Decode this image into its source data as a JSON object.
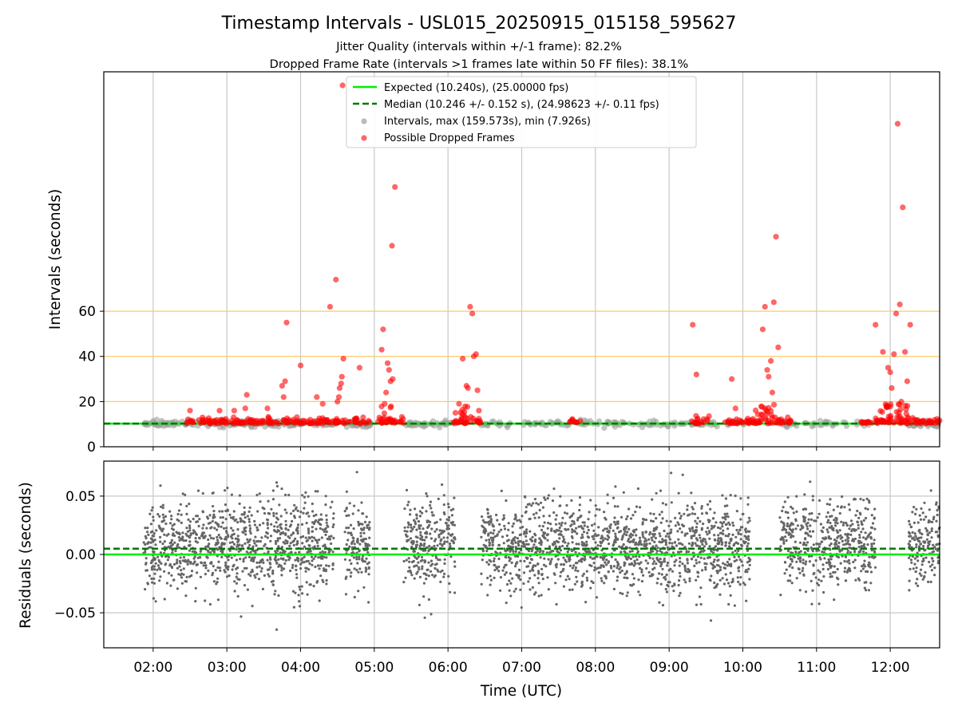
{
  "chart_data": {
    "type": "scatter",
    "title": "Timestamp Intervals - USL015_20250915_015158_595627",
    "subtitle_lines": [
      "Jitter Quality (intervals within +/-1 frame): 82.2%",
      "Dropped Frame Rate (intervals >1 frames late within 50 FF files): 38.1%"
    ],
    "xlabel": "Time (UTC)",
    "x_ticks": [
      "02:00",
      "03:00",
      "04:00",
      "05:00",
      "06:00",
      "07:00",
      "08:00",
      "09:00",
      "10:00",
      "11:00",
      "12:00"
    ],
    "xlim_hours": [
      1.33,
      12.67
    ],
    "colors": {
      "expected": "#00ee00",
      "median": "#007700",
      "intervals": "#9e9e9e",
      "dropped": "#ff0000",
      "residuals": "#666666",
      "threshold": "#ffc966",
      "grid": "#c8c8c8"
    },
    "top_panel": {
      "ylabel": "Intervals (seconds)",
      "yticks": [
        "0",
        "20",
        "40",
        "60"
      ],
      "ylim": [
        0,
        166
      ],
      "threshold_lines": [
        20,
        40,
        60
      ],
      "expected_value": 10.24,
      "median_value": 10.246,
      "legend": {
        "expected": "Expected (10.240s), (25.00000 fps)",
        "median": "Median (10.246 +/- 0.152 s), (24.98623 +/- 0.11 fps)",
        "intervals": "Intervals, max (159.573s), min (7.926s)",
        "dropped": "Possible Dropped Frames"
      },
      "dropped_frames": [
        [
          2.5,
          16
        ],
        [
          2.67,
          13
        ],
        [
          2.75,
          10.8
        ],
        [
          2.9,
          16
        ],
        [
          3.1,
          16
        ],
        [
          3.25,
          17
        ],
        [
          3.27,
          23
        ],
        [
          3.55,
          17
        ],
        [
          3.75,
          27
        ],
        [
          3.77,
          22
        ],
        [
          3.79,
          29
        ],
        [
          3.81,
          55
        ],
        [
          4.0,
          36
        ],
        [
          4.22,
          22
        ],
        [
          4.3,
          19
        ],
        [
          4.4,
          62
        ],
        [
          4.48,
          74
        ],
        [
          4.5,
          20
        ],
        [
          4.52,
          22
        ],
        [
          4.53,
          26
        ],
        [
          4.55,
          28
        ],
        [
          4.56,
          31
        ],
        [
          4.58,
          39
        ],
        [
          4.57,
          160
        ],
        [
          4.8,
          35
        ],
        [
          5.1,
          43
        ],
        [
          5.12,
          52
        ],
        [
          5.14,
          19
        ],
        [
          5.16,
          24
        ],
        [
          5.18,
          37
        ],
        [
          5.2,
          34
        ],
        [
          5.22,
          29
        ],
        [
          5.24,
          89
        ],
        [
          5.25,
          30
        ],
        [
          5.28,
          115
        ],
        [
          6.1,
          15
        ],
        [
          6.15,
          19
        ],
        [
          6.2,
          39
        ],
        [
          6.25,
          27
        ],
        [
          6.27,
          26
        ],
        [
          6.3,
          62
        ],
        [
          6.33,
          59
        ],
        [
          6.35,
          40
        ],
        [
          6.38,
          41
        ],
        [
          6.4,
          25
        ],
        [
          6.42,
          16
        ],
        [
          9.32,
          54
        ],
        [
          9.37,
          32
        ],
        [
          9.85,
          30
        ],
        [
          9.9,
          17
        ],
        [
          10.27,
          52
        ],
        [
          10.3,
          62
        ],
        [
          10.33,
          34
        ],
        [
          10.35,
          31
        ],
        [
          10.38,
          38
        ],
        [
          10.4,
          24
        ],
        [
          10.42,
          64
        ],
        [
          10.45,
          93
        ],
        [
          10.48,
          44
        ],
        [
          11.8,
          54
        ],
        [
          11.9,
          42
        ],
        [
          11.97,
          35
        ],
        [
          12.0,
          33
        ],
        [
          12.02,
          26
        ],
        [
          12.05,
          41
        ],
        [
          12.08,
          59
        ],
        [
          12.1,
          143
        ],
        [
          12.13,
          63
        ],
        [
          12.17,
          106
        ],
        [
          12.2,
          42
        ],
        [
          12.23,
          29
        ],
        [
          12.27,
          54
        ],
        [
          12.15,
          20
        ]
      ]
    },
    "bottom_panel": {
      "ylabel": "Residuals (seconds)",
      "yticks": [
        "0.05",
        "0.00",
        "−0.05"
      ],
      "ylim": [
        -0.08,
        0.08
      ],
      "expected_residual": 0.0,
      "median_residual": 0.005,
      "data_segments_hours": [
        [
          1.87,
          2.5
        ],
        [
          2.5,
          3.2
        ],
        [
          3.2,
          3.75
        ],
        [
          3.75,
          4.45
        ],
        [
          4.6,
          4.95
        ],
        [
          5.4,
          6.1
        ],
        [
          6.45,
          7.7
        ],
        [
          7.7,
          8.85
        ],
        [
          8.85,
          10.1
        ],
        [
          10.5,
          11.8
        ],
        [
          12.25,
          12.67
        ]
      ]
    }
  }
}
